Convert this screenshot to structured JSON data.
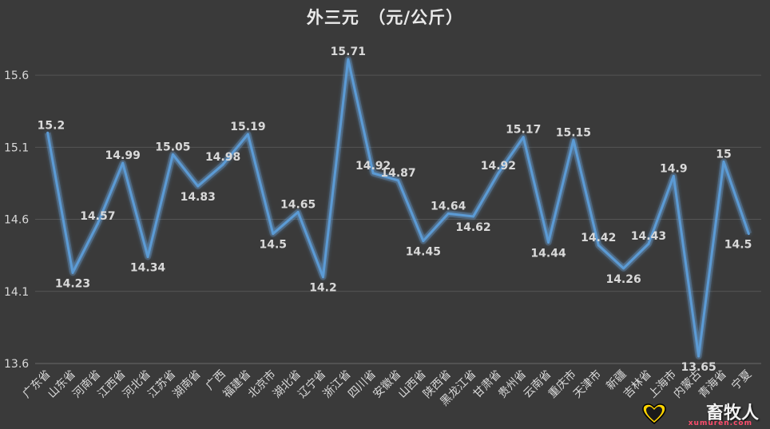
{
  "title": "外三元　（元/公斤）",
  "chart_data": {
    "type": "line",
    "title": "外三元　（元/公斤）",
    "xlabel": "",
    "ylabel": "",
    "ylim": [
      13.6,
      15.8
    ],
    "yticks": [
      "13.6",
      "14.1",
      "14.6",
      "15.1",
      "15.6"
    ],
    "grid": true,
    "legend": "none",
    "line_color": "#5b9bd5",
    "categories": [
      "广东省",
      "山东省",
      "河南省",
      "江西省",
      "河北省",
      "江苏省",
      "湖南省",
      "广西",
      "福建省",
      "北京市",
      "湖北省",
      "辽宁省",
      "浙江省",
      "四川省",
      "安徽省",
      "山西省",
      "陕西省",
      "黑龙江省",
      "甘肃省",
      "贵州省",
      "云南省",
      "重庆市",
      "天津市",
      "新疆",
      "吉林省",
      "上海市",
      "内蒙古",
      "青海省",
      "宁夏"
    ],
    "values": [
      15.2,
      14.23,
      14.57,
      14.99,
      14.34,
      15.05,
      14.83,
      14.98,
      15.19,
      14.5,
      14.65,
      14.2,
      15.71,
      14.92,
      14.87,
      14.45,
      14.64,
      14.62,
      14.92,
      15.17,
      14.44,
      15.15,
      14.42,
      14.26,
      14.43,
      14.9,
      13.65,
      15,
      14.5
    ],
    "data_labels": [
      "15.2",
      "14.23",
      "14.57",
      "14.99",
      "14.34",
      "15.05",
      "14.83",
      "14.98",
      "15.19",
      "14.5",
      "14.65",
      "14.2",
      "15.71",
      "14.92",
      "14.87",
      "14.45",
      "14.64",
      "14.62",
      "14.92",
      "15.17",
      "14.44",
      "15.15",
      "14.42",
      "14.26",
      "14.43",
      "14.9",
      "13.65",
      "15",
      "14.5"
    ]
  },
  "watermark": {
    "text": "畜牧人",
    "sub": "xumuren.com"
  }
}
